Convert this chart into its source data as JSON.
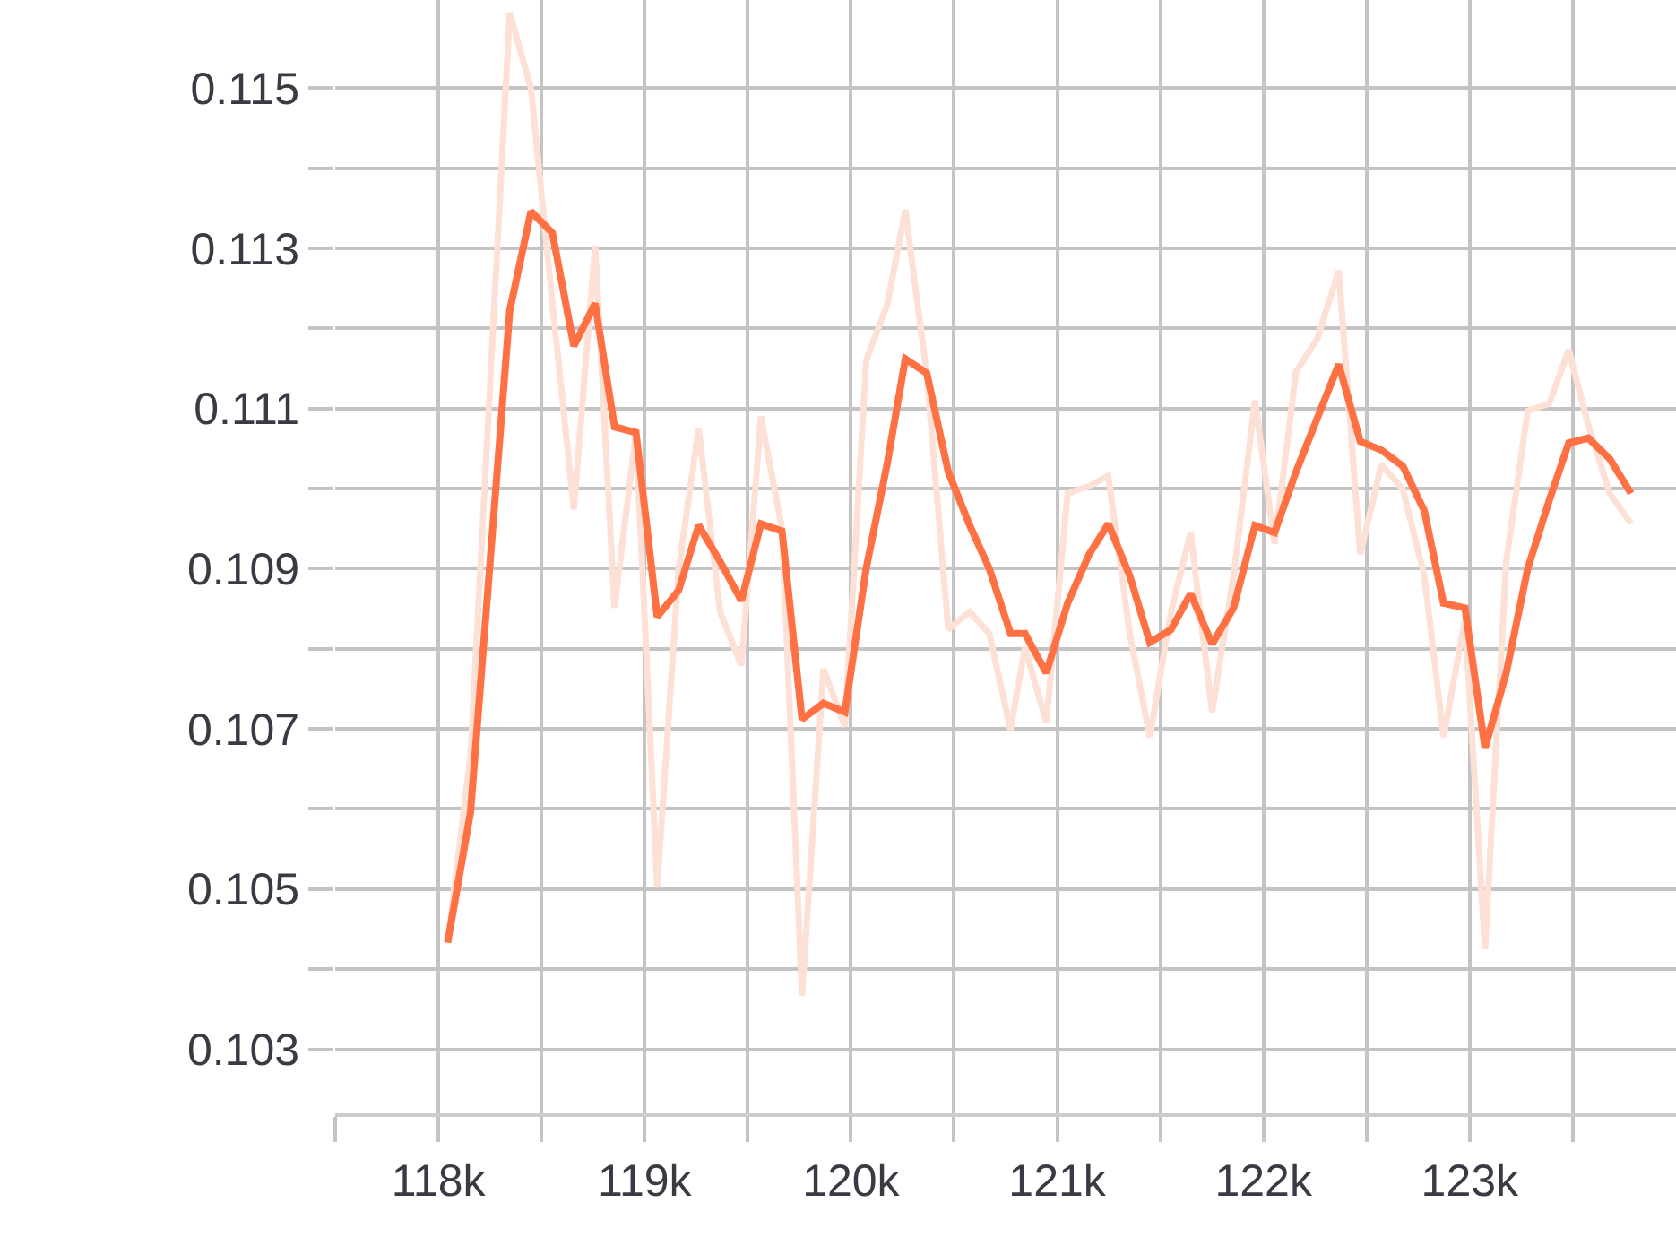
{
  "chart_data": {
    "type": "line",
    "x": [
      118045,
      118156,
      118346,
      118449,
      118553,
      118657,
      118760,
      118854,
      118958,
      119061,
      119165,
      119262,
      119366,
      119469,
      119564,
      119666,
      119763,
      119867,
      119971,
      120074,
      120178,
      120264,
      120368,
      120472,
      120576,
      120671,
      120774,
      120844,
      120947,
      121051,
      121155,
      121248,
      121352,
      121449,
      121552,
      121647,
      121751,
      121855,
      121959,
      122054,
      122158,
      122261,
      122365,
      122469,
      122572,
      122676,
      122780,
      122873,
      122977,
      123074,
      123177,
      123281,
      123385,
      123480,
      123575,
      123679,
      123782
    ],
    "series": [
      {
        "color": "#fde0d6",
        "values": [
          0.10433,
          0.10667,
          0.11594,
          0.115,
          0.11231,
          0.10974,
          0.11303,
          0.10851,
          0.1107,
          0.10502,
          0.109,
          0.11075,
          0.10846,
          0.10779,
          0.1109,
          0.10949,
          0.10367,
          0.10775,
          0.10703,
          0.1116,
          0.11231,
          0.11348,
          0.11142,
          0.10824,
          0.10846,
          0.10819,
          0.10699,
          0.10802,
          0.10708,
          0.10994,
          0.11003,
          0.11016,
          0.10819,
          0.1069,
          0.10846,
          0.10945,
          0.10721,
          0.10891,
          0.1111,
          0.10931,
          0.11146,
          0.11187,
          0.11272,
          0.10918,
          0.1103,
          0.10999,
          0.10891,
          0.1069,
          0.10837,
          0.10425,
          0.10909,
          0.11097,
          0.11106,
          0.11173,
          0.11079,
          0.10994,
          0.10956
        ]
      },
      {
        "color": "#ff7043",
        "values": [
          0.10433,
          0.10596,
          0.11222,
          0.11346,
          0.11319,
          0.11178,
          0.11231,
          0.11077,
          0.1107,
          0.1084,
          0.10873,
          0.10954,
          0.10909,
          0.1086,
          0.10956,
          0.10947,
          0.10712,
          0.10732,
          0.10721,
          0.109,
          0.11034,
          0.11162,
          0.11144,
          0.11021,
          0.10954,
          0.109,
          0.10819,
          0.10819,
          0.1077,
          0.10857,
          0.10918,
          0.10956,
          0.10891,
          0.10808,
          0.10824,
          0.10869,
          0.10806,
          0.10851,
          0.10954,
          0.10945,
          0.11021,
          0.11088,
          0.11155,
          0.11059,
          0.11048,
          0.11028,
          0.10972,
          0.10857,
          0.10851,
          0.10676,
          0.1077,
          0.109,
          0.10985,
          0.11057,
          0.11063,
          0.11037,
          0.10994
        ]
      }
    ],
    "xlim": [
      117500,
      124000
    ],
    "xticks": [
      {
        "value": 117500,
        "label": null
      },
      {
        "value": 118000,
        "label": "118k"
      },
      {
        "value": 118500,
        "label": null
      },
      {
        "value": 119000,
        "label": "119k"
      },
      {
        "value": 119500,
        "label": null
      },
      {
        "value": 120000,
        "label": "120k"
      },
      {
        "value": 120500,
        "label": null
      },
      {
        "value": 121000,
        "label": "121k"
      },
      {
        "value": 121500,
        "label": null
      },
      {
        "value": 122000,
        "label": "122k"
      },
      {
        "value": 122500,
        "label": null
      },
      {
        "value": 123000,
        "label": "123k"
      },
      {
        "value": 123500,
        "label": null
      }
    ],
    "ylim": [
      0.1022,
      0.1161
    ],
    "yticks": [
      0.103,
      {
        "value": 0.104,
        "label": null
      },
      0.105,
      {
        "value": 0.106,
        "label": null
      },
      0.107,
      {
        "value": 0.108,
        "label": null
      },
      0.109,
      {
        "value": 0.11,
        "label": null
      },
      0.111,
      {
        "value": 0.112,
        "label": null
      },
      0.113,
      {
        "value": 0.114,
        "label": null
      },
      0.115
    ],
    "grid": true,
    "marker": "none",
    "line_style": "solid"
  }
}
